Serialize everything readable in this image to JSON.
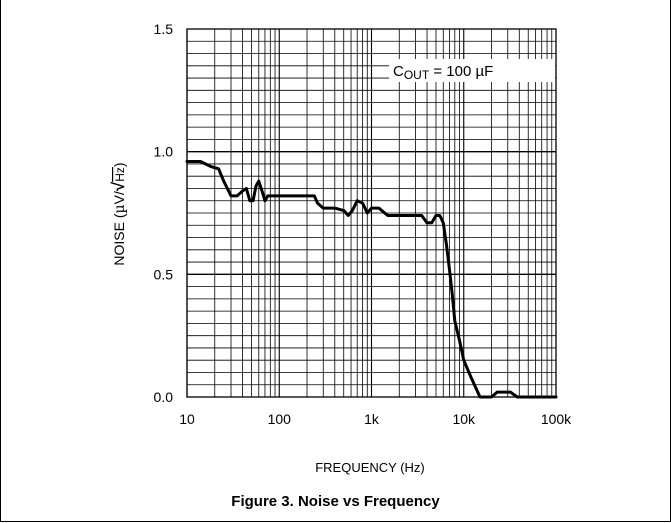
{
  "caption": "Figure 3. Noise vs Frequency",
  "chart_data": {
    "type": "line",
    "xscale": "log",
    "xlim": [
      10,
      100000
    ],
    "ylim": [
      0,
      1.5
    ],
    "xticks": [
      "10",
      "100",
      "1k",
      "10k",
      "100k"
    ],
    "yticks": [
      "0.0",
      "0.5",
      "1.0",
      "1.5"
    ],
    "xlabel": "FREQUENCY (Hz)",
    "ylabel": {
      "prefix": "NOISE (",
      "mu": "µ",
      "unit": "V/",
      "sqrt": "√",
      "hz": "Hz",
      "suffix": ")"
    },
    "annotation": {
      "c": "C",
      "sub": "OUT",
      "rest": " = 100 µF"
    },
    "grid": true,
    "line_color": "#000000",
    "series": [
      {
        "x": [
          10,
          14,
          18,
          22,
          25,
          30,
          35,
          40,
          44,
          48,
          52,
          56,
          60,
          65,
          70,
          75,
          80,
          100,
          150,
          200,
          240,
          260,
          300,
          400,
          500,
          560,
          620,
          700,
          800,
          900,
          1000,
          1100,
          1200,
          1500,
          2000,
          2500,
          3000,
          3500,
          4000,
          4500,
          5000,
          5500,
          6000,
          6500,
          7000,
          7500,
          8000,
          9000,
          10000,
          12000,
          15000,
          20000,
          23000,
          28000,
          32000,
          38000,
          45000,
          60000,
          100000
        ],
        "y": [
          0.96,
          0.96,
          0.94,
          0.93,
          0.88,
          0.82,
          0.82,
          0.84,
          0.85,
          0.8,
          0.8,
          0.86,
          0.88,
          0.84,
          0.8,
          0.82,
          0.82,
          0.82,
          0.82,
          0.82,
          0.82,
          0.79,
          0.77,
          0.77,
          0.76,
          0.74,
          0.76,
          0.8,
          0.79,
          0.75,
          0.77,
          0.77,
          0.77,
          0.74,
          0.74,
          0.74,
          0.74,
          0.74,
          0.71,
          0.71,
          0.74,
          0.74,
          0.71,
          0.62,
          0.52,
          0.42,
          0.31,
          0.23,
          0.15,
          0.08,
          0.0,
          0.0,
          0.02,
          0.02,
          0.02,
          0.0,
          0.0,
          0.0,
          0.0
        ]
      }
    ]
  }
}
